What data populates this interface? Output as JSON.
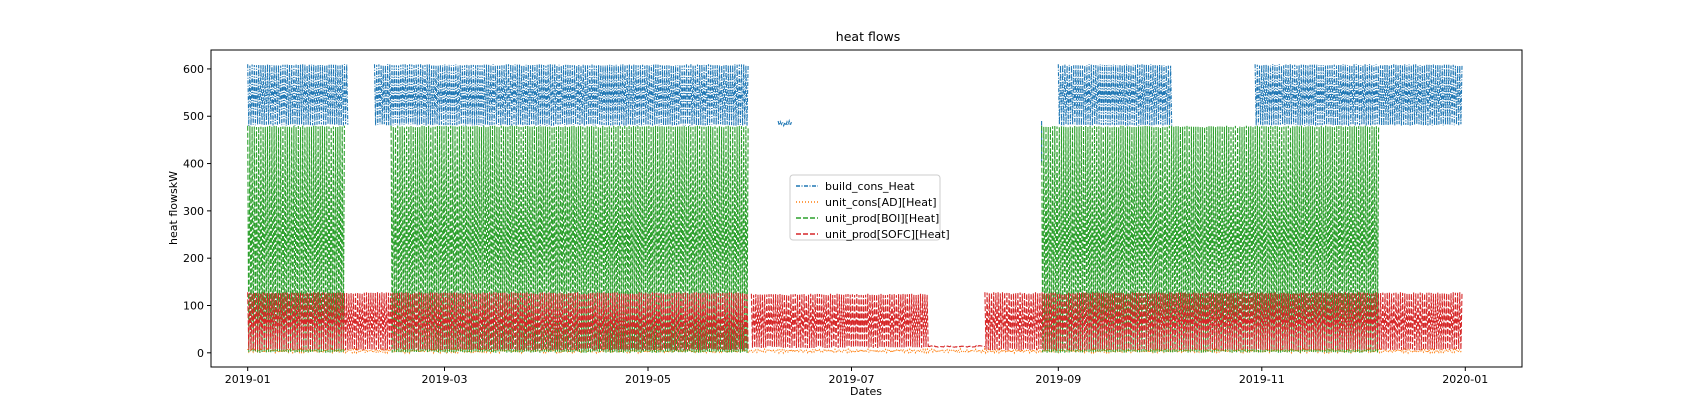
{
  "chart_data": {
    "type": "line",
    "title": "heat flows",
    "xlabel": "Dates",
    "ylabel": "heat flowskW",
    "x_range": [
      "2018-12-21",
      "2020-01-18"
    ],
    "ylim": [
      -30,
      640
    ],
    "x_ticks": [
      "2019-01",
      "2019-03",
      "2019-05",
      "2019-07",
      "2019-09",
      "2019-11",
      "2020-01"
    ],
    "y_ticks": [
      0,
      100,
      200,
      300,
      400,
      500,
      600
    ],
    "grid": false,
    "legend_position": "center",
    "series": [
      {
        "name": "build_cons_Heat",
        "color": "#1f77b4",
        "style": "dash-dot",
        "segments": [
          {
            "start": "2019-01-01",
            "end": "2019-01-31",
            "low": 480,
            "high": 610
          },
          {
            "start": "2019-02-08",
            "end": "2019-05-31",
            "low": 480,
            "high": 610
          },
          {
            "start": "2019-06-09",
            "end": "2019-06-13",
            "low": 480,
            "high": 490
          },
          {
            "start": "2019-08-27",
            "end": "2019-08-27",
            "low": 400,
            "high": 490
          },
          {
            "start": "2019-09-01",
            "end": "2019-10-05",
            "low": 480,
            "high": 610
          },
          {
            "start": "2019-10-30",
            "end": "2019-12-31",
            "low": 480,
            "high": 610
          }
        ]
      },
      {
        "name": "unit_cons[AD][Heat]",
        "color": "#ff7f0e",
        "style": "dotted",
        "segments": [
          {
            "start": "2019-01-01",
            "end": "2019-12-31",
            "low": 0,
            "high": 8
          }
        ]
      },
      {
        "name": "unit_prod[BOI][Heat]",
        "color": "#2ca02c",
        "style": "dashed",
        "segments": [
          {
            "start": "2019-01-01",
            "end": "2019-01-30",
            "low": 0,
            "high": 480
          },
          {
            "start": "2019-02-13",
            "end": "2019-05-31",
            "low": 0,
            "high": 480
          },
          {
            "start": "2019-08-27",
            "end": "2019-12-06",
            "low": 0,
            "high": 480
          }
        ]
      },
      {
        "name": "unit_prod[SOFC][Heat]",
        "color": "#d62728",
        "style": "dashed",
        "segments": [
          {
            "start": "2019-01-01",
            "end": "2019-05-31",
            "low": 5,
            "high": 128
          },
          {
            "start": "2019-06-01",
            "end": "2019-07-24",
            "low": 10,
            "high": 125
          },
          {
            "start": "2019-07-24",
            "end": "2019-08-10",
            "low": 12,
            "high": 15
          },
          {
            "start": "2019-08-10",
            "end": "2019-12-31",
            "low": 5,
            "high": 128
          }
        ]
      }
    ]
  }
}
